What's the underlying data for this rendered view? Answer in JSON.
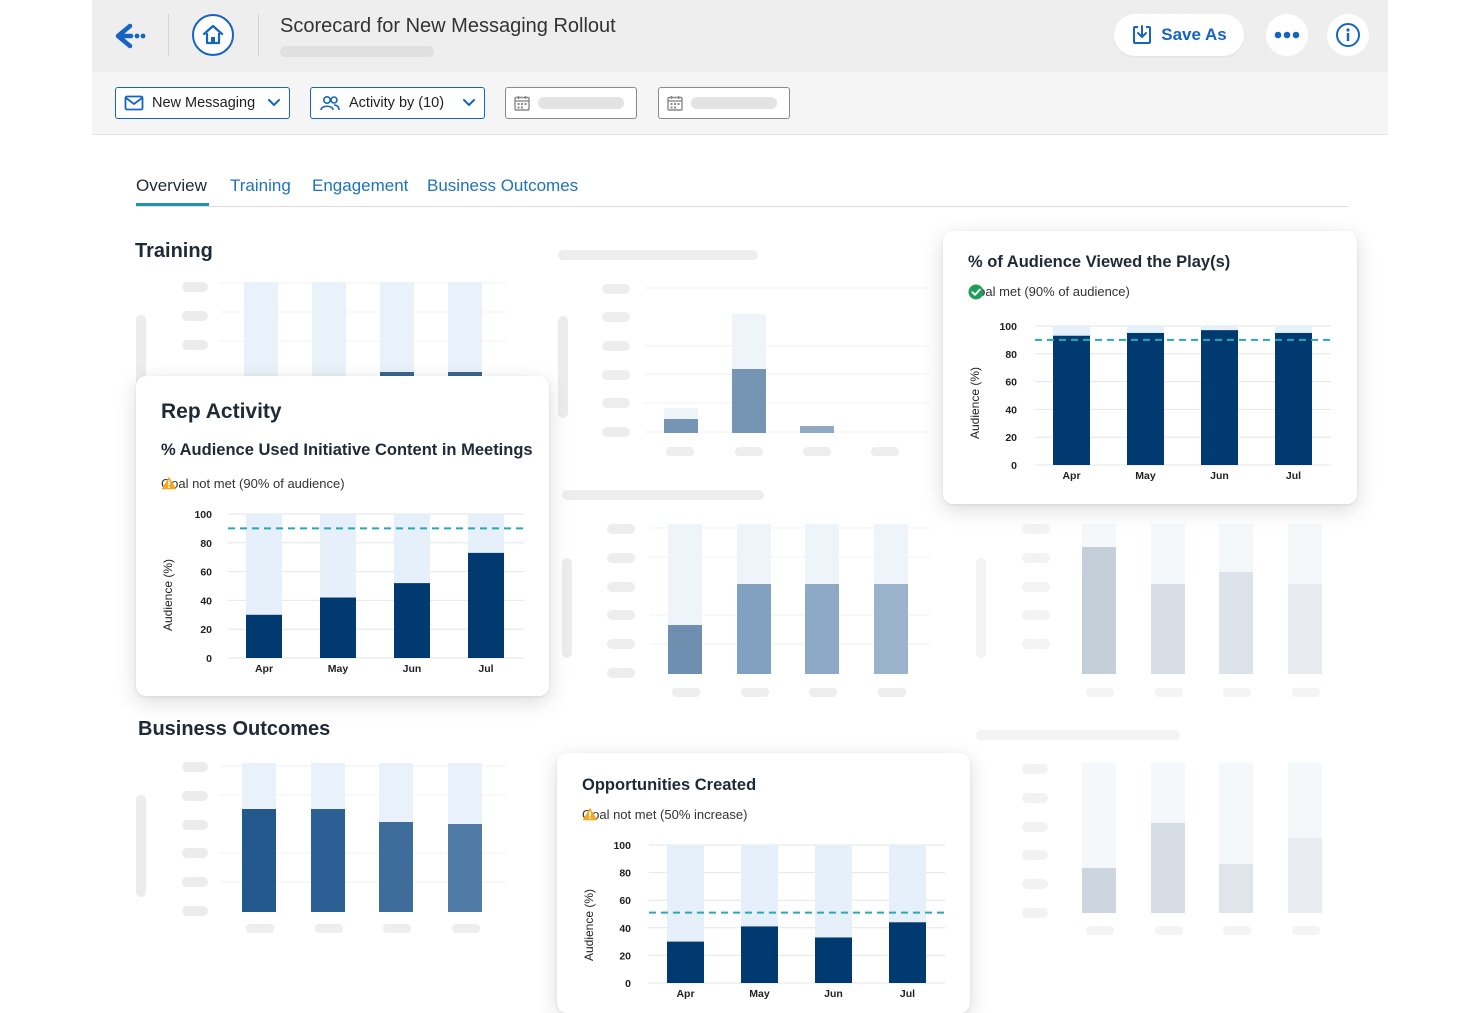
{
  "header": {
    "title": "Scorecard for New Messaging Rollout",
    "save_as": "Save As"
  },
  "filters": {
    "messaging": "New Messaging",
    "activity": "Activity by (10)"
  },
  "tabs": [
    {
      "label": "Overview",
      "active": true
    },
    {
      "label": "Training",
      "active": false
    },
    {
      "label": "Engagement",
      "active": false
    },
    {
      "label": "Business Outcomes",
      "active": false
    }
  ],
  "sections": {
    "training": "Training",
    "business_outcomes": "Business Outcomes"
  },
  "colors": {
    "primary": "#1565c0",
    "navy": "#003a70",
    "light_bar": "#e6f0fa",
    "goal_line": "#2aa8b4",
    "warning": "#f5a623",
    "success": "#1e9e5b"
  },
  "rep_activity": {
    "heading": "Rep Activity",
    "title": "% Audience Used Initiative Content in Meetings",
    "goal_text": "Goal not met (90% of audience)",
    "goal_icon": "warning-icon",
    "chart_data": {
      "type": "bar",
      "categories": [
        "Apr",
        "May",
        "Jun",
        "Jul"
      ],
      "values": [
        30,
        42,
        52,
        73
      ],
      "goal": 90,
      "ylabel": "Audience (%)",
      "ylim": [
        0,
        100
      ],
      "yticks": [
        "0",
        "20",
        "40",
        "60",
        "80",
        "100"
      ]
    }
  },
  "audience_viewed": {
    "title": "% of Audience Viewed the Play(s)",
    "goal_text": "Goal met (90% of audience)",
    "goal_icon": "check-circle-icon",
    "chart_data": {
      "type": "bar",
      "categories": [
        "Apr",
        "May",
        "Jun",
        "Jul"
      ],
      "values": [
        93,
        95,
        97,
        95
      ],
      "goal": 90,
      "ylabel": "Audience (%)",
      "ylim": [
        0,
        100
      ],
      "yticks": [
        "0",
        "20",
        "40",
        "60",
        "80",
        "100"
      ]
    }
  },
  "opportunities": {
    "title": "Opportunities Created",
    "goal_text": "Goal not met (50% increase)",
    "goal_icon": "warning-icon",
    "chart_data": {
      "type": "bar",
      "categories": [
        "Apr",
        "May",
        "Jun",
        "Jul"
      ],
      "values": [
        30,
        41,
        33,
        44
      ],
      "goal": 51,
      "ylabel": "Audience (%)",
      "ylim": [
        0,
        100
      ],
      "yticks": [
        "0",
        "20",
        "40",
        "60",
        "80",
        "100"
      ]
    }
  }
}
